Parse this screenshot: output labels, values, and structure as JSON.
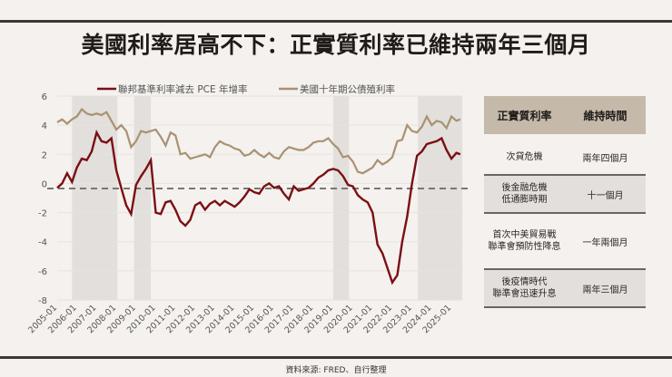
{
  "title": "美國利率居高不下：正實質利率已維持兩年三個月",
  "source": "資料來源: FRED、自行整理",
  "colors": {
    "background": "#f4f1ee",
    "series_real_rate": "#7a0f14",
    "series_10y": "#a89272",
    "shade": "#e2dfdc",
    "dashed": "#7a7673",
    "table_header": "#c5b9a9"
  },
  "legend": {
    "series1": "聯邦基準利率減去 PCE 年增率",
    "series2": "美國十年期公債殖利率"
  },
  "table": {
    "headers": [
      "正實質利率",
      "維持時間"
    ],
    "rows": [
      {
        "period_line1": "次貸危機",
        "period_line2": "",
        "duration": "兩年四個月"
      },
      {
        "period_line1": "後金融危機",
        "period_line2": "低通膨時期",
        "duration": "十一個月"
      },
      {
        "period_line1": "首次中美貿易戰",
        "period_line2": "聯準會預防性降息",
        "duration": "一年兩個月"
      },
      {
        "period_line1": "後疫情時代",
        "period_line2": "聯準會迅速升息",
        "duration": "兩年三個月"
      }
    ]
  },
  "chart_data": {
    "type": "line",
    "title": "美國利率居高不下：正實質利率已維持兩年三個月",
    "xlabel": "",
    "ylabel": "",
    "ylim": [
      -8,
      6
    ],
    "yticks": [
      6,
      4,
      2,
      0,
      -2,
      -4,
      -6,
      -8
    ],
    "xticks": [
      "2005-01",
      "2006-01",
      "2007-01",
      "2008-01",
      "2009-01",
      "2010-01",
      "2011-01",
      "2012-01",
      "2013-01",
      "2014-01",
      "2015-01",
      "2016-01",
      "2017-01",
      "2018-01",
      "2019-01",
      "2020-01",
      "2021-01",
      "2022-01",
      "2023-01",
      "2024-01",
      "2025-01"
    ],
    "grid": "horizontal",
    "legend_position": "top",
    "reference_line": {
      "y": -0.35,
      "style": "dashed"
    },
    "shaded_periods": [
      {
        "start": 2005.75,
        "end": 2008.05,
        "label": "次貸危機"
      },
      {
        "start": 2008.9,
        "end": 2009.75,
        "label": "後金融危機低通膨時期"
      },
      {
        "start": 2019.0,
        "end": 2019.8,
        "label": "首次中美貿易戰聯準會預防性降息"
      },
      {
        "start": 2023.3,
        "end": 2025.55,
        "label": "後疫情時代聯準會迅速升息"
      }
    ],
    "x": [
      2005.0,
      2005.25,
      2005.5,
      2005.75,
      2006.0,
      2006.25,
      2006.5,
      2006.75,
      2007.0,
      2007.25,
      2007.5,
      2007.75,
      2008.0,
      2008.25,
      2008.5,
      2008.75,
      2009.0,
      2009.25,
      2009.5,
      2009.75,
      2010.0,
      2010.25,
      2010.5,
      2010.75,
      2011.0,
      2011.25,
      2011.5,
      2011.75,
      2012.0,
      2012.25,
      2012.5,
      2012.75,
      2013.0,
      2013.25,
      2013.5,
      2013.75,
      2014.0,
      2014.25,
      2014.5,
      2014.75,
      2015.0,
      2015.25,
      2015.5,
      2015.75,
      2016.0,
      2016.25,
      2016.5,
      2016.75,
      2017.0,
      2017.25,
      2017.5,
      2017.75,
      2018.0,
      2018.25,
      2018.5,
      2018.75,
      2019.0,
      2019.25,
      2019.5,
      2019.75,
      2020.0,
      2020.25,
      2020.5,
      2020.75,
      2021.0,
      2021.25,
      2021.5,
      2021.75,
      2022.0,
      2022.25,
      2022.5,
      2022.75,
      2023.0,
      2023.25,
      2023.5,
      2023.75,
      2024.0,
      2024.25,
      2024.5,
      2024.75,
      2025.0,
      2025.25,
      2025.45
    ],
    "series": [
      {
        "name": "聯邦基準利率減去 PCE 年增率",
        "values": [
          -0.3,
          0.0,
          0.7,
          0.1,
          1.1,
          1.7,
          1.6,
          2.2,
          3.5,
          2.9,
          2.8,
          3.1,
          0.9,
          -0.3,
          -1.5,
          -2.1,
          -0.1,
          0.5,
          1.0,
          1.6,
          -2.0,
          -2.1,
          -1.3,
          -1.2,
          -1.8,
          -2.6,
          -2.9,
          -2.5,
          -1.5,
          -1.3,
          -1.8,
          -1.4,
          -1.2,
          -1.5,
          -1.2,
          -1.4,
          -1.6,
          -1.3,
          -0.9,
          -0.4,
          -0.6,
          -0.7,
          -0.2,
          0.0,
          -0.3,
          -0.2,
          -0.7,
          -1.1,
          -0.2,
          -0.5,
          -0.4,
          -0.3,
          0.0,
          0.4,
          0.6,
          0.9,
          1.0,
          0.9,
          0.5,
          -0.1,
          -0.2,
          -0.8,
          -1.1,
          -1.3,
          -2.0,
          -4.2,
          -4.8,
          -5.8,
          -6.8,
          -6.3,
          -4.0,
          -2.3,
          0.0,
          1.9,
          2.2,
          2.7,
          2.8,
          2.9,
          3.1,
          2.3,
          1.7,
          2.1,
          2.0
        ]
      },
      {
        "name": "美國十年期公債殖利率",
        "values": [
          4.2,
          4.4,
          4.1,
          4.4,
          4.6,
          5.1,
          4.8,
          4.7,
          4.8,
          4.7,
          4.9,
          4.3,
          3.7,
          4.0,
          3.6,
          2.5,
          2.9,
          3.6,
          3.5,
          3.6,
          3.7,
          3.2,
          2.6,
          3.5,
          3.3,
          2.0,
          2.1,
          1.7,
          1.8,
          1.9,
          2.0,
          1.8,
          2.5,
          2.9,
          2.7,
          2.6,
          2.4,
          2.3,
          1.9,
          2.0,
          2.3,
          2.0,
          1.8,
          2.1,
          1.8,
          1.7,
          2.2,
          2.5,
          2.4,
          2.3,
          2.3,
          2.5,
          2.8,
          2.9,
          2.9,
          3.1,
          2.7,
          2.4,
          1.8,
          1.9,
          1.5,
          0.8,
          0.7,
          0.9,
          1.1,
          1.6,
          1.3,
          1.5,
          1.8,
          2.9,
          3.0,
          4.0,
          3.6,
          3.5,
          3.9,
          4.6,
          4.0,
          4.3,
          4.2,
          3.8,
          4.6,
          4.3,
          4.4
        ]
      }
    ]
  }
}
